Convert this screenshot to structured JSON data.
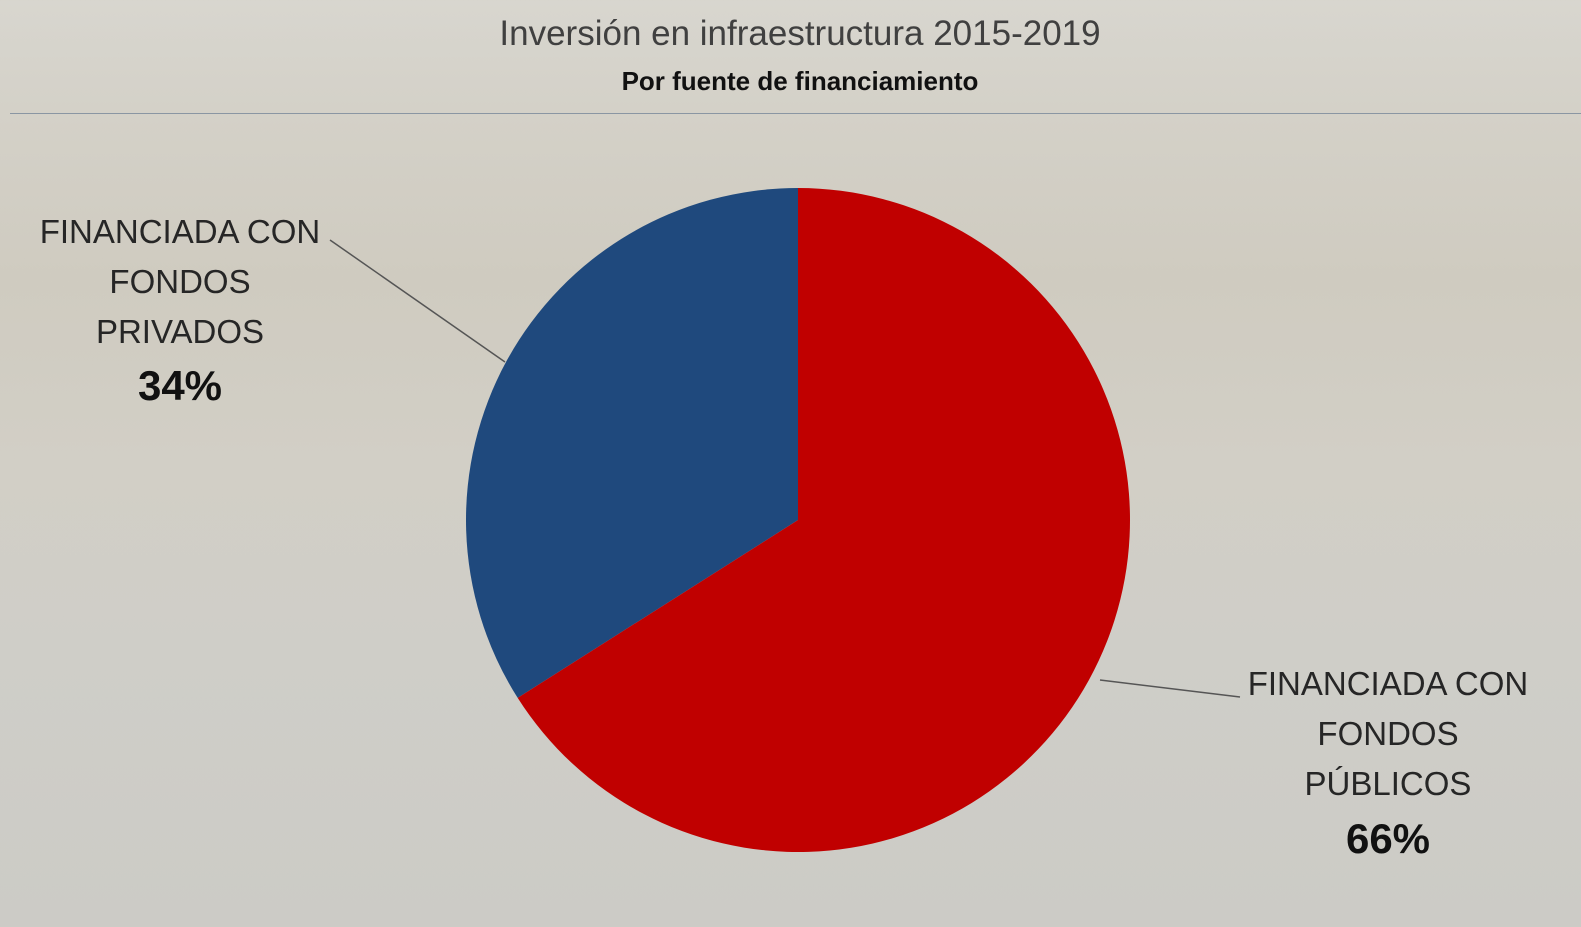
{
  "chart_data": {
    "type": "pie",
    "title": "Inversión en infraestructura 2015-2019",
    "subtitle": "Por fuente de financiamiento",
    "categories": [
      "FINANCIADA CON\nFONDOS\nPÚBLICOS",
      "FINANCIADA CON\nFONDOS\nPRIVADOS"
    ],
    "values": [
      66,
      34
    ],
    "value_labels": [
      "66%",
      "34%"
    ],
    "colors": [
      "#c00000",
      "#1f497d"
    ]
  }
}
